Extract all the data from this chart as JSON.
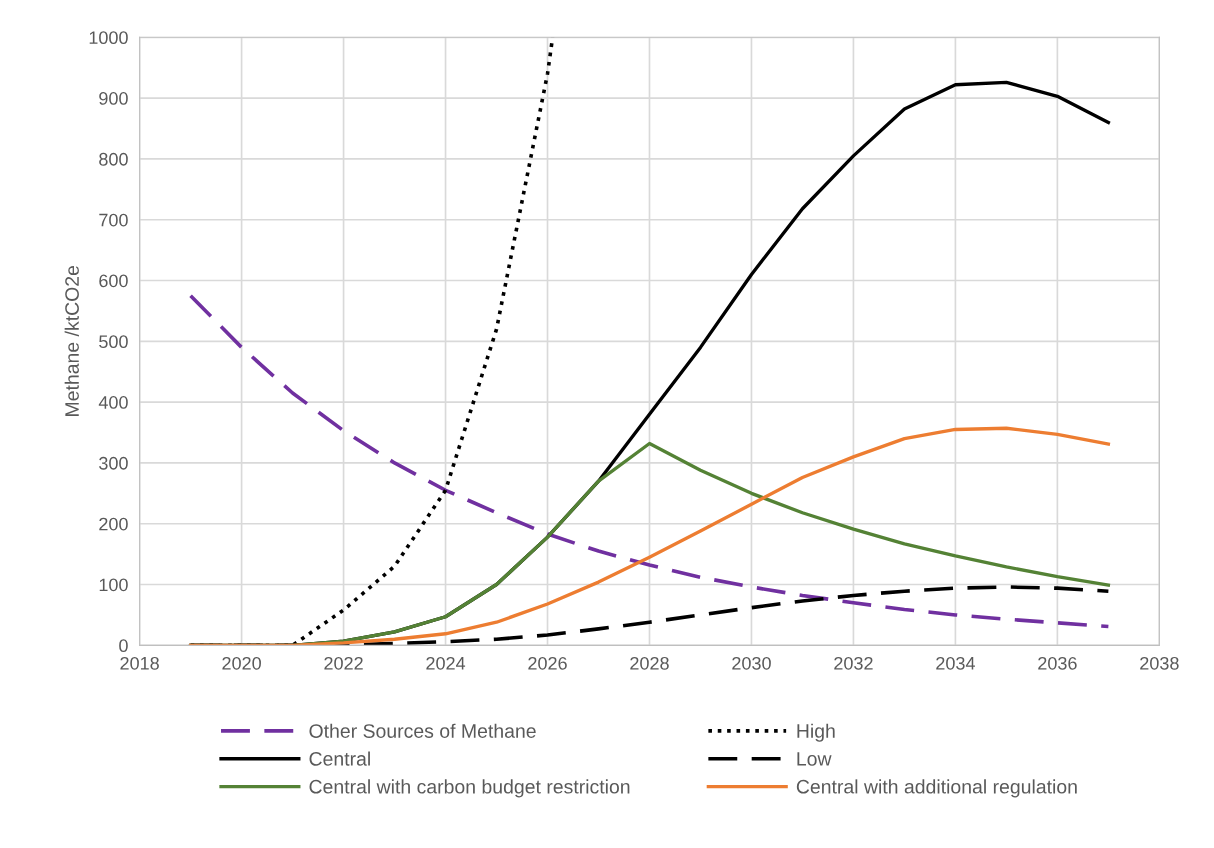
{
  "chart_data": {
    "type": "line",
    "ylabel": "Methane /ktCO2e",
    "x": [
      2019,
      2020,
      2021,
      2022,
      2023,
      2024,
      2025,
      2026,
      2027,
      2028,
      2029,
      2030,
      2031,
      2032,
      2033,
      2034,
      2035,
      2036,
      2037
    ],
    "series": [
      {
        "name": "Other Sources of Methane",
        "color": "#7030a0",
        "line_style": "dashed",
        "values": [
          575,
          490,
          415,
          353,
          300,
          255,
          218,
          183,
          155,
          132,
          112,
          96,
          82,
          70,
          59,
          50,
          43,
          37,
          31
        ]
      },
      {
        "name": "High",
        "color": "#000000",
        "line_style": "dotted",
        "x": [
          2019,
          2020,
          2021,
          2022,
          2023,
          2024,
          2025,
          2026,
          2026.1
        ],
        "values": [
          0,
          0,
          0,
          58,
          130,
          255,
          520,
          940,
          1000
        ]
      },
      {
        "name": "Central",
        "color": "#000000",
        "line_style": "solid",
        "values": [
          0,
          0,
          0,
          7,
          22,
          47,
          100,
          178,
          270,
          380,
          490,
          610,
          718,
          805,
          882,
          922,
          926,
          903,
          860
        ]
      },
      {
        "name": "Low",
        "color": "#000000",
        "line_style": "dashed",
        "values": [
          0,
          0,
          0,
          1,
          3,
          6,
          10,
          17,
          27,
          38,
          50,
          62,
          73,
          82,
          89,
          94,
          96,
          94,
          89
        ]
      },
      {
        "name": "Central with carbon budget restriction",
        "color": "#548235",
        "line_style": "solid",
        "values": [
          0,
          0,
          0,
          7,
          22,
          47,
          100,
          178,
          270,
          332,
          288,
          250,
          218,
          191,
          167,
          147,
          129,
          113,
          99
        ]
      },
      {
        "name": "Central with additional regulation",
        "color": "#ed7d31",
        "line_style": "solid",
        "values": [
          0,
          0,
          0,
          4,
          10,
          19,
          38,
          68,
          104,
          145,
          188,
          232,
          276,
          310,
          340,
          355,
          357,
          347,
          331
        ]
      }
    ],
    "xlim": [
      2018,
      2038
    ],
    "xticks": [
      2018,
      2020,
      2022,
      2024,
      2026,
      2028,
      2030,
      2032,
      2034,
      2036,
      2038
    ],
    "ylim": [
      0,
      1000
    ],
    "yticks": [
      0,
      100,
      200,
      300,
      400,
      500,
      600,
      700,
      800,
      900,
      1000
    ],
    "grid": true,
    "legend": "bottom",
    "marker": "none"
  }
}
